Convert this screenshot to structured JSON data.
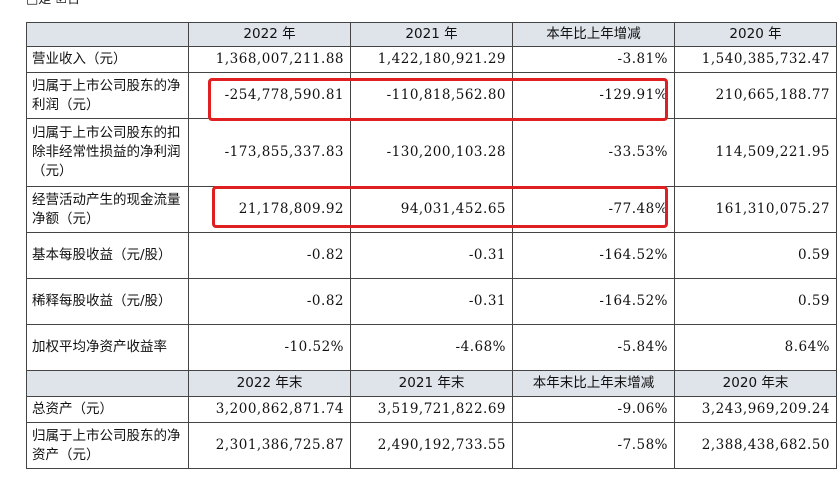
{
  "top_text": "□是 ☑否",
  "table": {
    "header1": [
      "",
      "2022 年",
      "2021 年",
      "本年比上年增减",
      "2020 年"
    ],
    "rows1": [
      {
        "label": "营业收入（元）",
        "cells": [
          "1,368,007,211.88",
          "1,422,180,921.29",
          "-3.81%",
          "1,540,385,732.47"
        ]
      },
      {
        "label": "归属于上市公司股东的净利润（元）",
        "cells": [
          "-254,778,590.81",
          "-110,818,562.80",
          "-129.91%",
          "210,665,188.77"
        ]
      },
      {
        "label": "归属于上市公司股东的扣除非经常性损益的净利润（元）",
        "cells": [
          "-173,855,337.83",
          "-130,200,103.28",
          "-33.53%",
          "114,509,221.95"
        ]
      },
      {
        "label": "经营活动产生的现金流量净额（元）",
        "cells": [
          "21,178,809.92",
          "94,031,452.65",
          "-77.48%",
          "161,310,075.27"
        ]
      },
      {
        "label": "基本每股收益（元/股）",
        "cells": [
          "-0.82",
          "-0.31",
          "-164.52%",
          "0.59"
        ]
      },
      {
        "label": "稀释每股收益（元/股）",
        "cells": [
          "-0.82",
          "-0.31",
          "-164.52%",
          "0.59"
        ]
      },
      {
        "label": "加权平均净资产收益率",
        "cells": [
          "-10.52%",
          "-4.68%",
          "-5.84%",
          "8.64%"
        ]
      }
    ],
    "header2": [
      "",
      "2022 年末",
      "2021 年末",
      "本年末比上年末增减",
      "2020 年末"
    ],
    "rows2": [
      {
        "label": "总资产（元）",
        "cells": [
          "3,200,862,871.74",
          "3,519,721,822.69",
          "-9.06%",
          "3,243,969,209.24"
        ]
      },
      {
        "label": "归属于上市公司股东的净资产（元）",
        "cells": [
          "2,301,386,725.87",
          "2,490,192,733.55",
          "-7.58%",
          "2,388,438,682.50"
        ]
      }
    ]
  }
}
